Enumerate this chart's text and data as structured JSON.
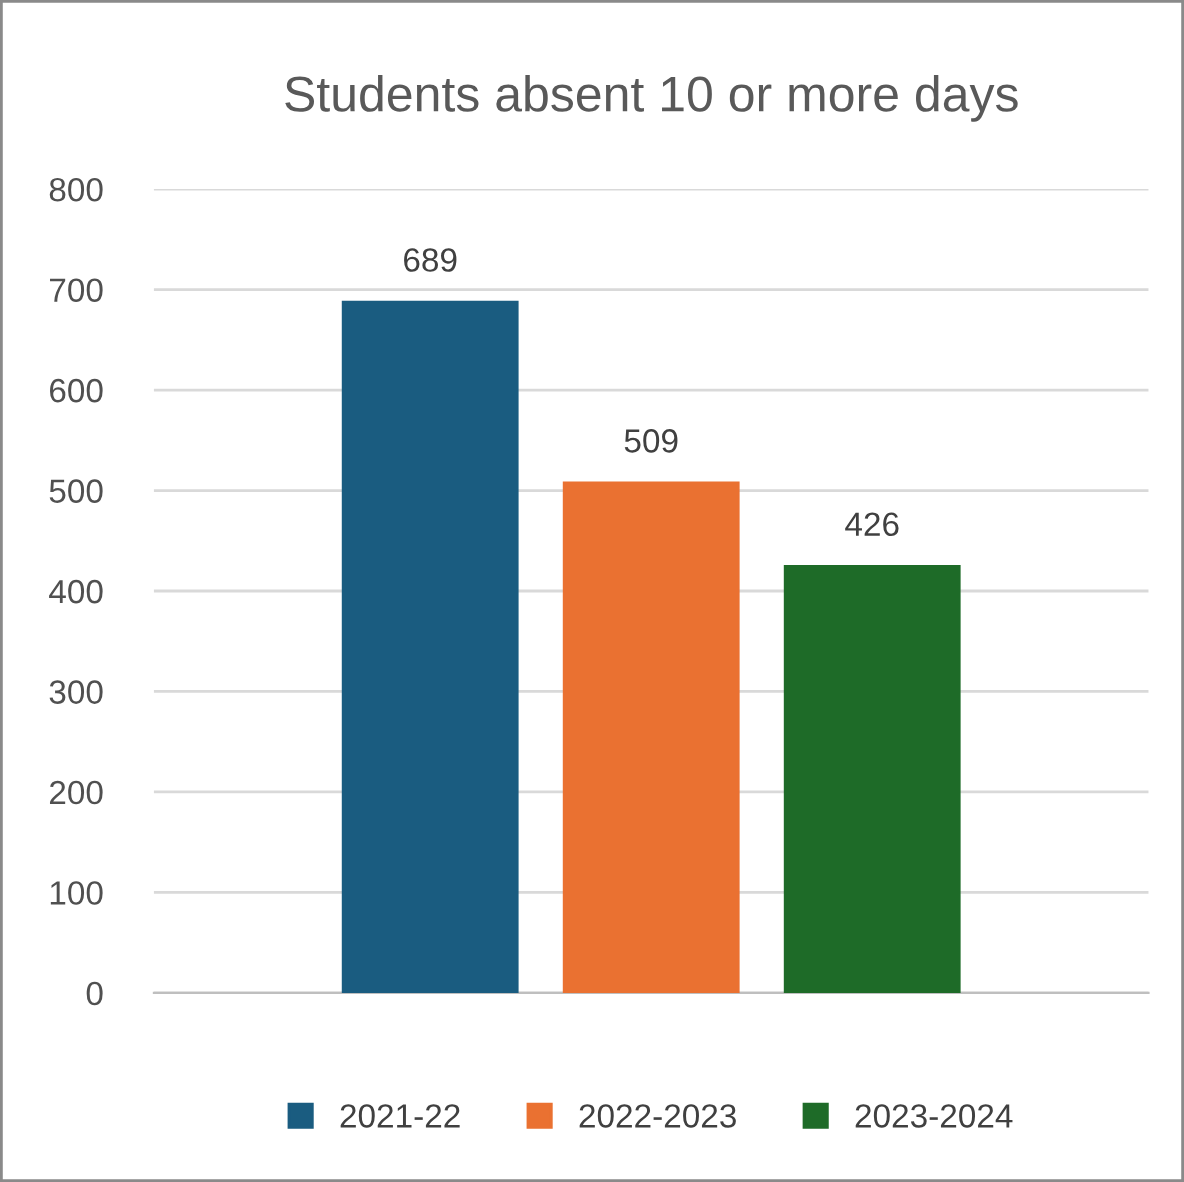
{
  "chart_data": {
    "type": "bar",
    "title": "Students absent 10 or more days",
    "categories": [
      null
    ],
    "series": [
      {
        "name": "2021-22",
        "color": "#1a5c80",
        "values": [
          689
        ]
      },
      {
        "name": "2022-2023",
        "color": "#ea7131",
        "values": [
          509
        ]
      },
      {
        "name": "2023-2024",
        "color": "#1e6b28",
        "values": [
          426
        ]
      }
    ],
    "ylim": [
      0,
      800
    ],
    "yticks": [
      0,
      100,
      200,
      300,
      400,
      500,
      600,
      700,
      800
    ],
    "grid": "y",
    "legend": "bottom",
    "data_labels": true
  }
}
